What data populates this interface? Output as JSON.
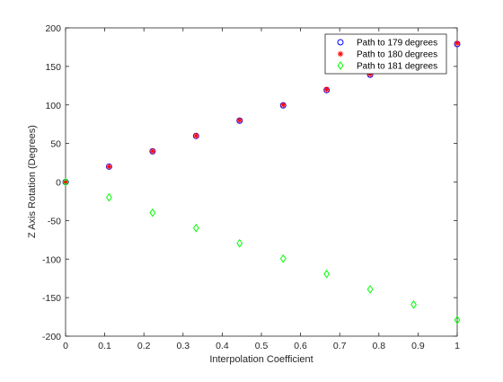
{
  "chart_data": {
    "type": "scatter",
    "title": "",
    "xlabel": "Interpolation Coefficient",
    "ylabel": "Z Axis Rotation (Degrees)",
    "xlim": [
      0,
      1
    ],
    "ylim": [
      -200,
      200
    ],
    "xticks": [
      0,
      0.1,
      0.2,
      0.3,
      0.4,
      0.5,
      0.6,
      0.7,
      0.8,
      0.9,
      1
    ],
    "xtick_labels": [
      "0",
      "0.1",
      "0.2",
      "0.3",
      "0.4",
      "0.5",
      "0.6",
      "0.7",
      "0.8",
      "0.9",
      "1"
    ],
    "yticks": [
      -200,
      -150,
      -100,
      -50,
      0,
      50,
      100,
      150,
      200
    ],
    "ytick_labels": [
      "-200",
      "-150",
      "-100",
      "-50",
      "0",
      "50",
      "100",
      "150",
      "200"
    ],
    "grid": false,
    "legend_position": "top-right",
    "series": [
      {
        "name": "Path to 179 degrees",
        "marker": "circle",
        "color": "#0000ff",
        "x": [
          0,
          0.1111,
          0.2222,
          0.3333,
          0.4444,
          0.5556,
          0.6667,
          0.7778,
          1
        ],
        "y": [
          0,
          19.9,
          39.8,
          59.7,
          79.6,
          99.4,
          119.3,
          139.2,
          179
        ]
      },
      {
        "name": "Path to 180 degrees",
        "marker": "star",
        "color": "#ff0000",
        "x": [
          0,
          0.1111,
          0.2222,
          0.3333,
          0.4444,
          0.5556,
          0.6667,
          0.7778,
          1
        ],
        "y": [
          0,
          20,
          40,
          60,
          80,
          100,
          120,
          140,
          180
        ]
      },
      {
        "name": "Path to 181 degrees",
        "marker": "diamond",
        "color": "#00ff00",
        "x": [
          0,
          0.1111,
          0.2222,
          0.3333,
          0.4444,
          0.5556,
          0.6667,
          0.7778,
          0.8889,
          1
        ],
        "y": [
          0,
          -19.9,
          -39.8,
          -59.7,
          -79.6,
          -99.4,
          -119.3,
          -139.2,
          -159.1,
          -179
        ]
      }
    ]
  }
}
